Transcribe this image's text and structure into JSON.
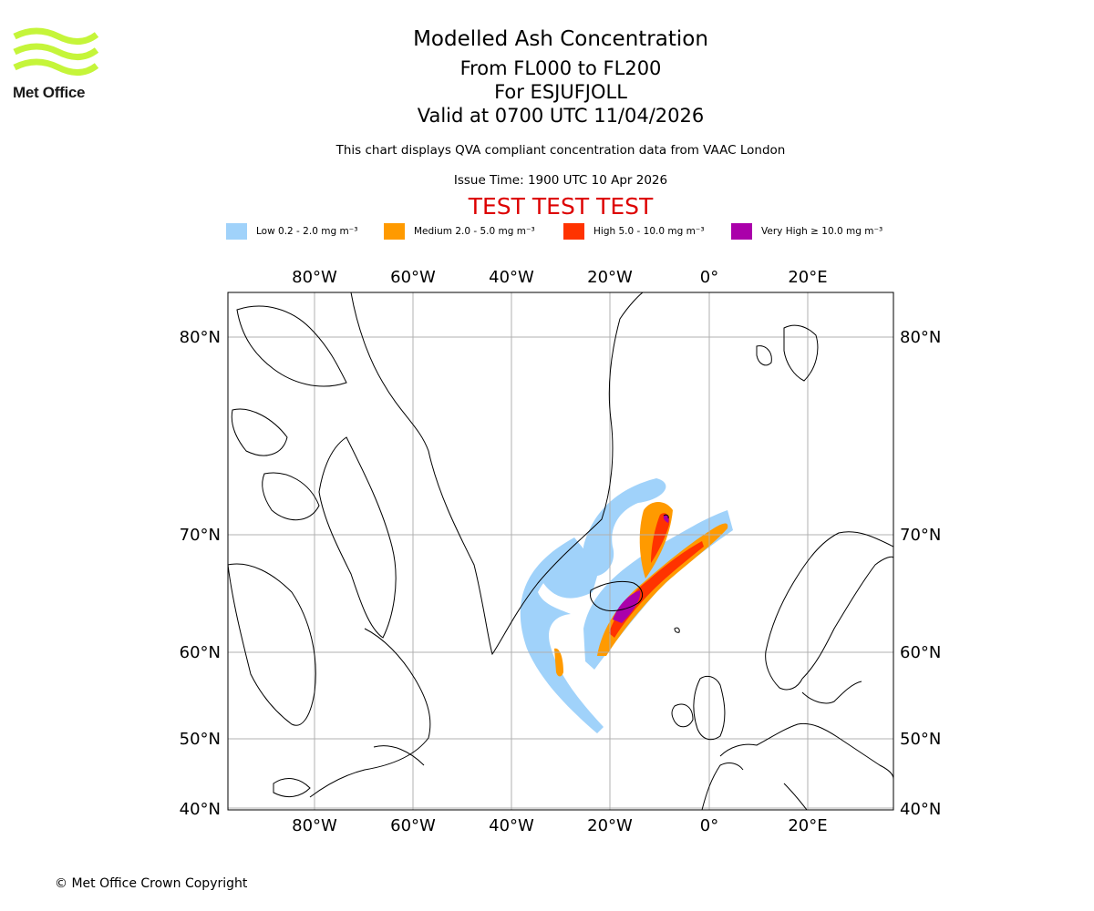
{
  "logo": {
    "text": "Met Office",
    "color": "#c5f53a"
  },
  "titles": {
    "main": "Modelled Ash Concentration",
    "levels": "From FL000 to FL200",
    "volcano": "For ESJUFJOLL",
    "valid": "Valid at 0700 UTC 11/04/2026",
    "description": "This chart displays QVA compliant concentration data from VAAC London",
    "issue": "Issue Time: 1900 UTC 10 Apr 2026",
    "test": "TEST TEST TEST",
    "test_color": "#dd0000"
  },
  "legend": [
    {
      "label": "Low 0.2 - 2.0 mg m⁻³",
      "color": "#a0d2fa"
    },
    {
      "label": "Medium 2.0 - 5.0 mg m⁻³",
      "color": "#ff9a00"
    },
    {
      "label": "High 5.0 - 10.0 mg m⁻³",
      "color": "#ff3300"
    },
    {
      "label": "Very High  ≥  10.0 mg m⁻³",
      "color": "#aa00aa"
    }
  ],
  "map": {
    "lon_labels": [
      "80°W",
      "60°W",
      "40°W",
      "20°W",
      "0°",
      "20°E"
    ],
    "lat_labels": [
      "80°N",
      "70°N",
      "60°N",
      "50°N",
      "40°N"
    ],
    "grid": true
  },
  "copyright": "© Met Office Crown Copyright"
}
